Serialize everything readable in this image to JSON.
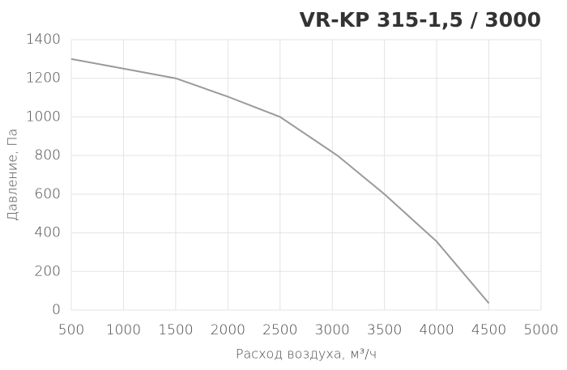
{
  "chart_data": {
    "type": "line",
    "title": "VR-KP 315-1,5 / 3000",
    "x_label": "Расход воздуха, м³/ч",
    "y_label": "Давление, Па",
    "x": [
      500,
      1000,
      1500,
      2000,
      2500,
      3050,
      3500,
      4000,
      4500
    ],
    "series": [
      {
        "name": "VR-KP 315-1,5 / 3000",
        "color": "#9a9a9a",
        "values": [
          1300,
          1250,
          1200,
          1105,
          1000,
          800,
          600,
          355,
          35
        ]
      }
    ],
    "xlim": [
      500,
      5000
    ],
    "xticks": [
      500,
      1000,
      1500,
      2000,
      2500,
      3000,
      3500,
      4000,
      4500,
      5000
    ],
    "ylim": [
      0,
      1400
    ],
    "yticks": [
      0,
      200,
      400,
      600,
      800,
      1000,
      1200,
      1400
    ],
    "grid": true
  }
}
